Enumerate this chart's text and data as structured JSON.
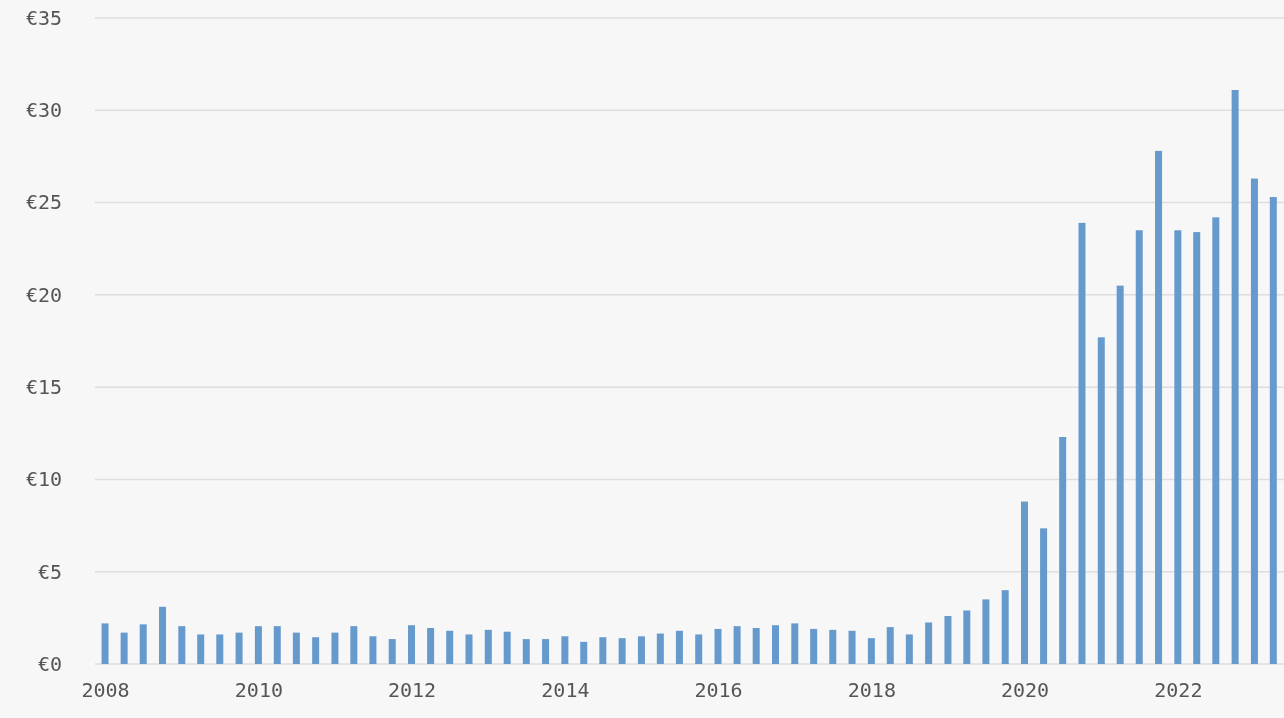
{
  "chart_data": {
    "type": "bar",
    "x": [
      "2008-01",
      "2008-04",
      "2008-07",
      "2008-10",
      "2009-01",
      "2009-04",
      "2009-07",
      "2009-10",
      "2010-01",
      "2010-04",
      "2010-07",
      "2010-10",
      "2011-01",
      "2011-04",
      "2011-07",
      "2011-10",
      "2012-01",
      "2012-04",
      "2012-07",
      "2012-10",
      "2013-01",
      "2013-04",
      "2013-07",
      "2013-10",
      "2014-01",
      "2014-04",
      "2014-07",
      "2014-10",
      "2015-01",
      "2015-04",
      "2015-07",
      "2015-10",
      "2016-01",
      "2016-04",
      "2016-07",
      "2016-10",
      "2017-01",
      "2017-04",
      "2017-07",
      "2017-10",
      "2018-01",
      "2018-04",
      "2018-07",
      "2018-10",
      "2019-01",
      "2019-04",
      "2019-07",
      "2019-10",
      "2020-01",
      "2020-04",
      "2020-07",
      "2020-10",
      "2021-01",
      "2021-04",
      "2021-07",
      "2021-10",
      "2022-01",
      "2022-04",
      "2022-07",
      "2022-10",
      "2023-01",
      "2023-04"
    ],
    "values": [
      2.2,
      1.7,
      2.15,
      3.1,
      2.05,
      1.6,
      1.6,
      1.7,
      2.05,
      2.05,
      1.7,
      1.45,
      1.7,
      2.05,
      1.5,
      1.35,
      2.1,
      1.95,
      1.8,
      1.6,
      1.85,
      1.75,
      1.35,
      1.35,
      1.5,
      1.2,
      1.45,
      1.4,
      1.5,
      1.65,
      1.8,
      1.6,
      1.9,
      2.05,
      1.95,
      2.1,
      2.2,
      1.9,
      1.85,
      1.8,
      1.4,
      2.0,
      1.6,
      2.25,
      2.6,
      2.9,
      3.5,
      4.0,
      8.8,
      7.35,
      12.3,
      23.9,
      17.7,
      20.5,
      23.5,
      27.8,
      23.5,
      23.4,
      24.2,
      31.1,
      26.3,
      25.3
    ],
    "color": "#6699cc",
    "xlim": [
      "2007-12-08",
      "2023-05-22"
    ],
    "xticks": [
      {
        "value": "2008-01-01",
        "label": "2008"
      },
      {
        "value": "2010-01-01",
        "label": "2010"
      },
      {
        "value": "2012-01-01",
        "label": "2012"
      },
      {
        "value": "2014-01-01",
        "label": "2014"
      },
      {
        "value": "2016-01-01",
        "label": "2016"
      },
      {
        "value": "2018-01-01",
        "label": "2018"
      },
      {
        "value": "2020-01-01",
        "label": "2020"
      },
      {
        "value": "2022-01-01",
        "label": "2022"
      }
    ],
    "ylim": [
      0,
      35
    ],
    "yticks": [
      {
        "value": 0,
        "label": "€0"
      },
      {
        "value": 5,
        "label": "€5"
      },
      {
        "value": 10,
        "label": "€10"
      },
      {
        "value": 15,
        "label": "€15"
      },
      {
        "value": 20,
        "label": "€20"
      },
      {
        "value": 25,
        "label": "€25"
      },
      {
        "value": 30,
        "label": "€30"
      },
      {
        "value": 35,
        "label": "€35"
      }
    ],
    "grid": "y"
  }
}
